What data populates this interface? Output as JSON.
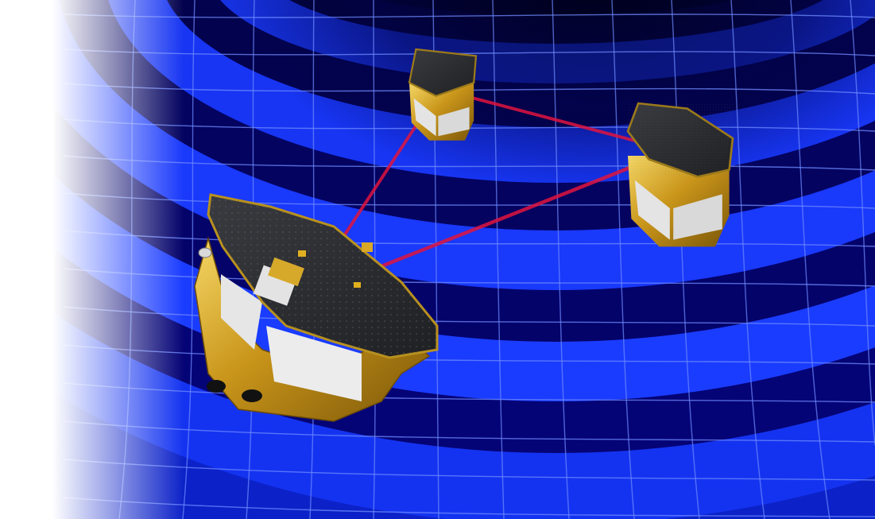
{
  "scene": {
    "colors": {
      "background": "#ffffff",
      "space_deep": "#00001c",
      "wave_trough": "#050583",
      "wave_crest": "#1c3cff",
      "grid_line": "#5f7dff",
      "laser": "#d8103a",
      "solar_panel": "#2e2f33",
      "gold_foil": "#c99a1b",
      "gold_highlight": "#f1cf52",
      "white_panel": "#e6e6e6"
    },
    "elements": [
      "gravitational-wave-grid",
      "laser-beam",
      "spacecraft"
    ],
    "spacecraft_count": 3,
    "laser_link_count": 3
  }
}
